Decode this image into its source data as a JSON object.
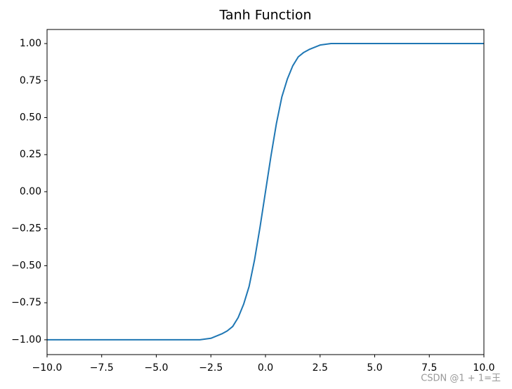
{
  "chart_data": {
    "type": "line",
    "title": "Tanh Function",
    "x": [
      -10,
      -9,
      -8,
      -7,
      -6,
      -5,
      -4,
      -3,
      -2.5,
      -2,
      -1.75,
      -1.5,
      -1.25,
      -1,
      -0.75,
      -0.5,
      -0.25,
      0,
      0.25,
      0.5,
      0.75,
      1,
      1.25,
      1.5,
      1.75,
      2,
      2.5,
      3,
      4,
      5,
      6,
      7,
      8,
      9,
      10
    ],
    "series": [
      {
        "color": "#1f77b4",
        "values": [
          -1,
          -1,
          -1,
          -1,
          -1,
          -1,
          -1,
          -1,
          -0.99,
          -0.96,
          -0.94,
          -0.91,
          -0.85,
          -0.76,
          -0.64,
          -0.46,
          -0.24,
          0,
          0.24,
          0.46,
          0.64,
          0.76,
          0.85,
          0.91,
          0.94,
          0.96,
          0.99,
          1,
          1,
          1,
          1,
          1,
          1,
          1,
          1
        ]
      }
    ],
    "xlim": [
      -10,
      10
    ],
    "xticks": [
      {
        "value": -10,
        "label": "−10.0"
      },
      {
        "value": -7.5,
        "label": "−7.5"
      },
      {
        "value": -5,
        "label": "−5.0"
      },
      {
        "value": -2.5,
        "label": "−2.5"
      },
      {
        "value": 0,
        "label": "0.0"
      },
      {
        "value": 2.5,
        "label": "2.5"
      },
      {
        "value": 5,
        "label": "5.0"
      },
      {
        "value": 7.5,
        "label": "7.5"
      },
      {
        "value": 10,
        "label": "10.0"
      }
    ],
    "ylim": [
      -1.1,
      1.095
    ],
    "yticks": [
      {
        "value": -1,
        "label": "−1.00"
      },
      {
        "value": -0.75,
        "label": "−0.75"
      },
      {
        "value": -0.5,
        "label": "−0.50"
      },
      {
        "value": -0.25,
        "label": "−0.25"
      },
      {
        "value": 0,
        "label": "0.00"
      },
      {
        "value": 0.25,
        "label": "0.25"
      },
      {
        "value": 0.5,
        "label": "0.50"
      },
      {
        "value": 0.75,
        "label": "0.75"
      },
      {
        "value": 1,
        "label": "1.00"
      }
    ],
    "grid": false
  },
  "watermark": "CSDN @1 + 1=王"
}
